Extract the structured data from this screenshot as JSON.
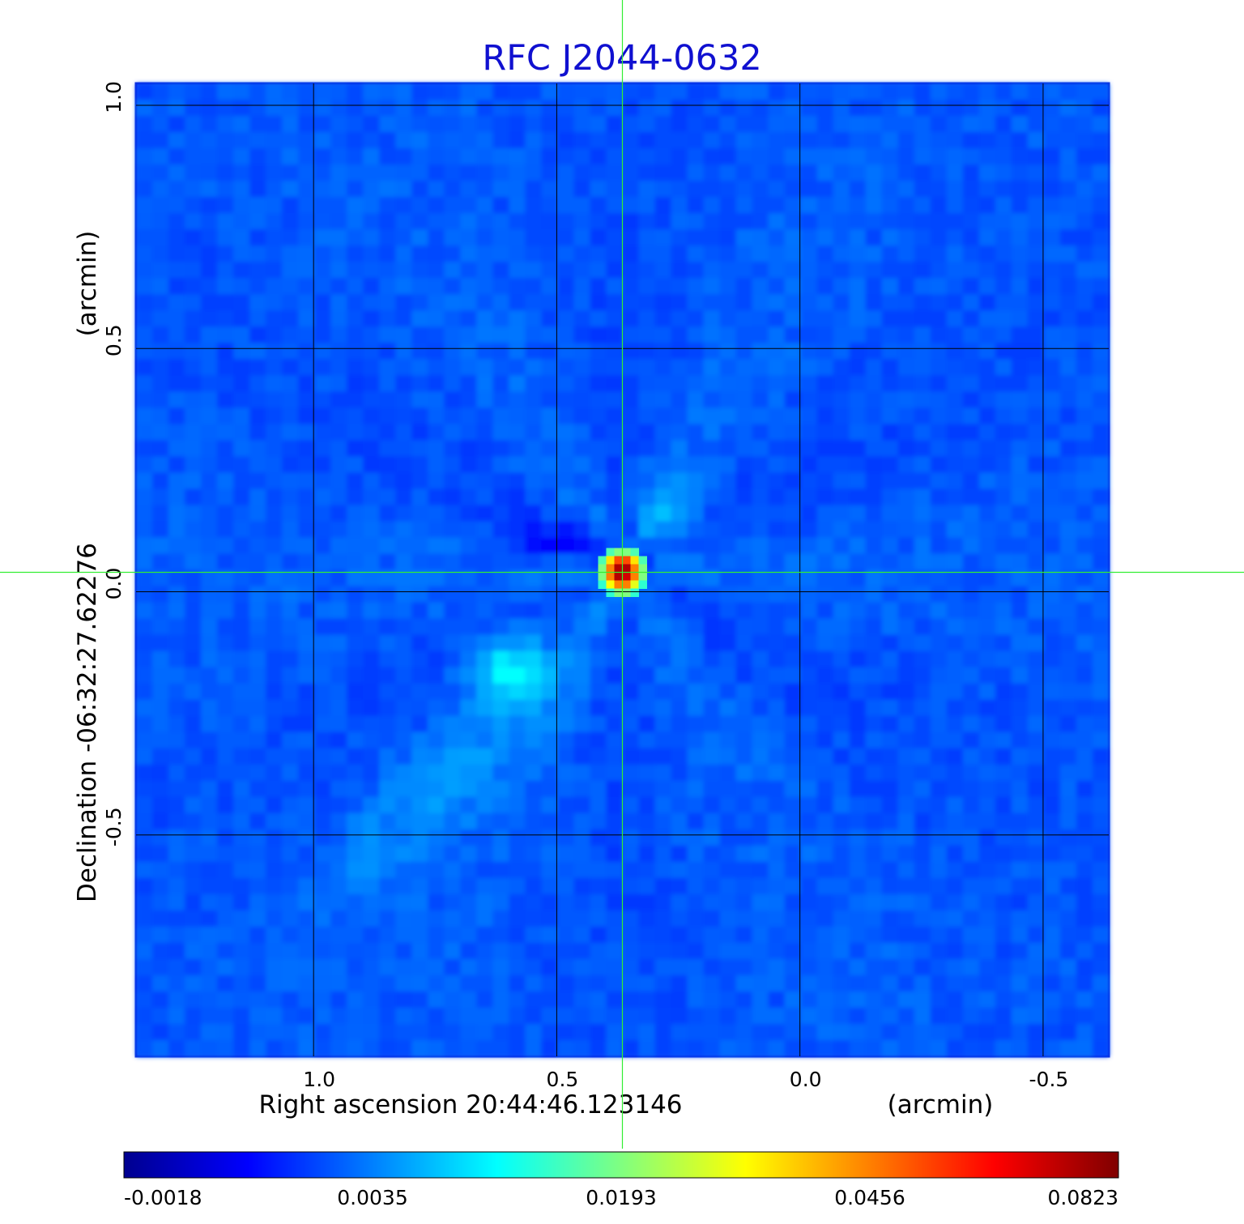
{
  "chart_data": {
    "type": "heatmap",
    "title": "RFC J2044-0632",
    "xlabel": "Right ascension  20:44:46.123146",
    "xunit": "(arcmin)",
    "ylabel": "Declination  -06:32:27.62276",
    "yunit": "(arcmin)",
    "xlim": [
      1.365,
      -0.635
    ],
    "ylim": [
      -0.955,
      1.045
    ],
    "x_ticks": [
      1.0,
      0.5,
      0.0,
      -0.5
    ],
    "x_tick_labels": [
      "1.0",
      "0.5",
      "0.0",
      "-0.5"
    ],
    "y_ticks": [
      1.0,
      0.5,
      0.0,
      -0.5
    ],
    "y_tick_labels": [
      "1.0",
      "0.5",
      "0.0",
      "-0.5"
    ],
    "grid": true,
    "crosshair": {
      "x": 0.365,
      "y": 0.04
    },
    "colorscale": "jet",
    "colorbar": {
      "ticks": [
        -0.0018,
        0.0035,
        0.0193,
        0.0456,
        0.0823
      ],
      "tick_labels": [
        "-0.0018",
        "0.0035",
        "0.0193",
        "0.0456",
        "0.0823"
      ]
    },
    "features": [
      {
        "kind": "peak",
        "x": 0.365,
        "y": 0.04,
        "value": 0.0823
      },
      {
        "kind": "secondary-blob",
        "x": 0.6,
        "y": -0.16,
        "value": 0.006
      },
      {
        "kind": "secondary-blob",
        "x": 0.27,
        "y": 0.17,
        "value": 0.003
      }
    ],
    "background_level": 0.0
  }
}
